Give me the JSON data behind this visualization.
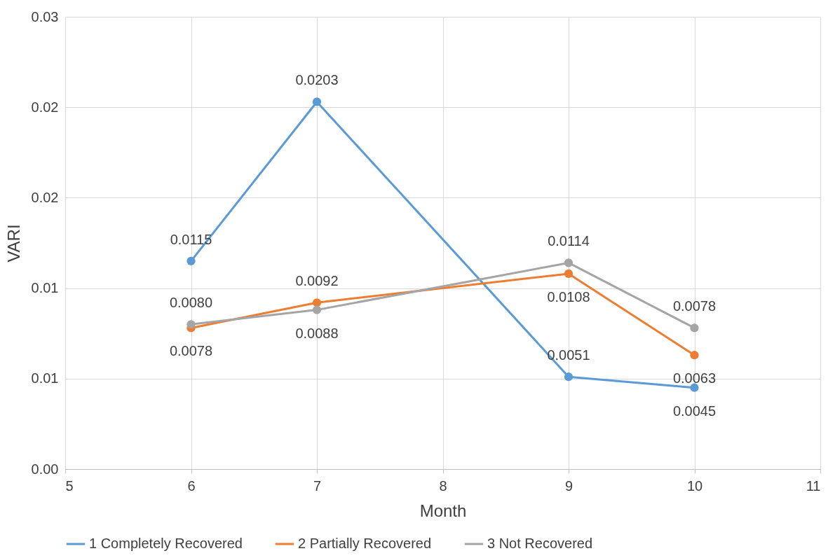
{
  "chart_data": {
    "type": "line",
    "xlabel": "Month",
    "ylabel": "VARI",
    "x": [
      6,
      7,
      9,
      10
    ],
    "series": [
      {
        "name": "1 Completely Recovered",
        "color": "#5b9bd5",
        "values": [
          0.0115,
          0.0203,
          0.0051,
          0.0045
        ],
        "value_labels": [
          "0.0115",
          "0.0203",
          "0.0051",
          "0.0045"
        ]
      },
      {
        "name": "2 Partially Recovered",
        "color": "#ed7d31",
        "values": [
          0.0078,
          0.0092,
          0.0108,
          0.0063
        ],
        "value_labels": [
          "0.0078",
          "0.0092",
          "0.0108",
          "0.0063"
        ]
      },
      {
        "name": "3 Not Recovered",
        "color": "#a5a5a5",
        "values": [
          0.008,
          0.0088,
          0.0114,
          0.0078
        ],
        "value_labels": [
          "0.0080",
          "0.0088",
          "0.0114",
          "0.0078"
        ]
      }
    ],
    "xlim": [
      5,
      11
    ],
    "xticks": [
      5,
      6,
      7,
      8,
      9,
      10,
      11
    ],
    "ylim": [
      0,
      0.025
    ],
    "yticks": [
      {
        "value": 0,
        "label": "0.00"
      },
      {
        "value": 0.005,
        "label": "0.01"
      },
      {
        "value": 0.01,
        "label": "0.01"
      },
      {
        "value": 0.015,
        "label": "0.02"
      },
      {
        "value": 0.02,
        "label": "0.02"
      },
      {
        "value": 0.025,
        "label": "0.03"
      }
    ],
    "grid": true,
    "legend": "bottom",
    "marker": "circle",
    "line_style": "solid"
  }
}
